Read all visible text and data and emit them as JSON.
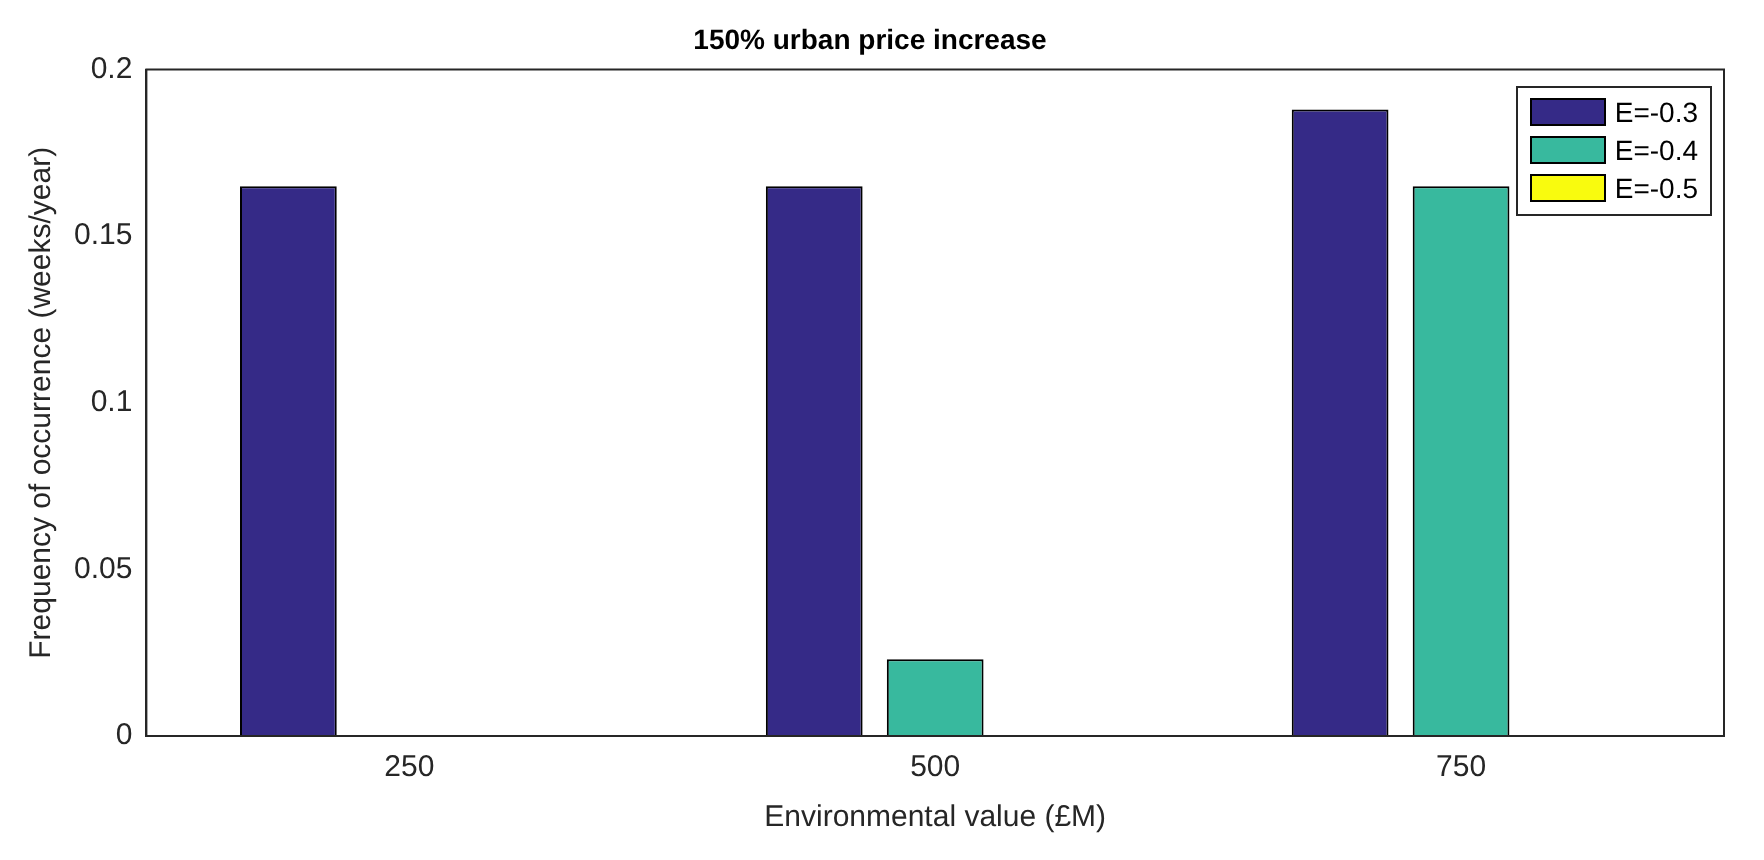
{
  "chart_data": {
    "type": "bar",
    "title": "150% urban price increase",
    "xlabel": "Environmental value (£M)",
    "ylabel": "Frequency of occurrence (weeks/year)",
    "categories": [
      "250",
      "500",
      "750"
    ],
    "series": [
      {
        "name": "E=-0.3",
        "color": "#352a87",
        "values": [
          0.165,
          0.165,
          0.188
        ]
      },
      {
        "name": "E=-0.4",
        "color": "#38b99e",
        "values": [
          0,
          0.023,
          0.165
        ]
      },
      {
        "name": "E=-0.5",
        "color": "#f9fb0e",
        "values": [
          0,
          0,
          0
        ]
      }
    ],
    "ylim": [
      0,
      0.2
    ],
    "yticks": [
      0,
      0.05,
      0.1,
      0.15,
      0.2
    ],
    "grid": false,
    "legend": "top right"
  }
}
